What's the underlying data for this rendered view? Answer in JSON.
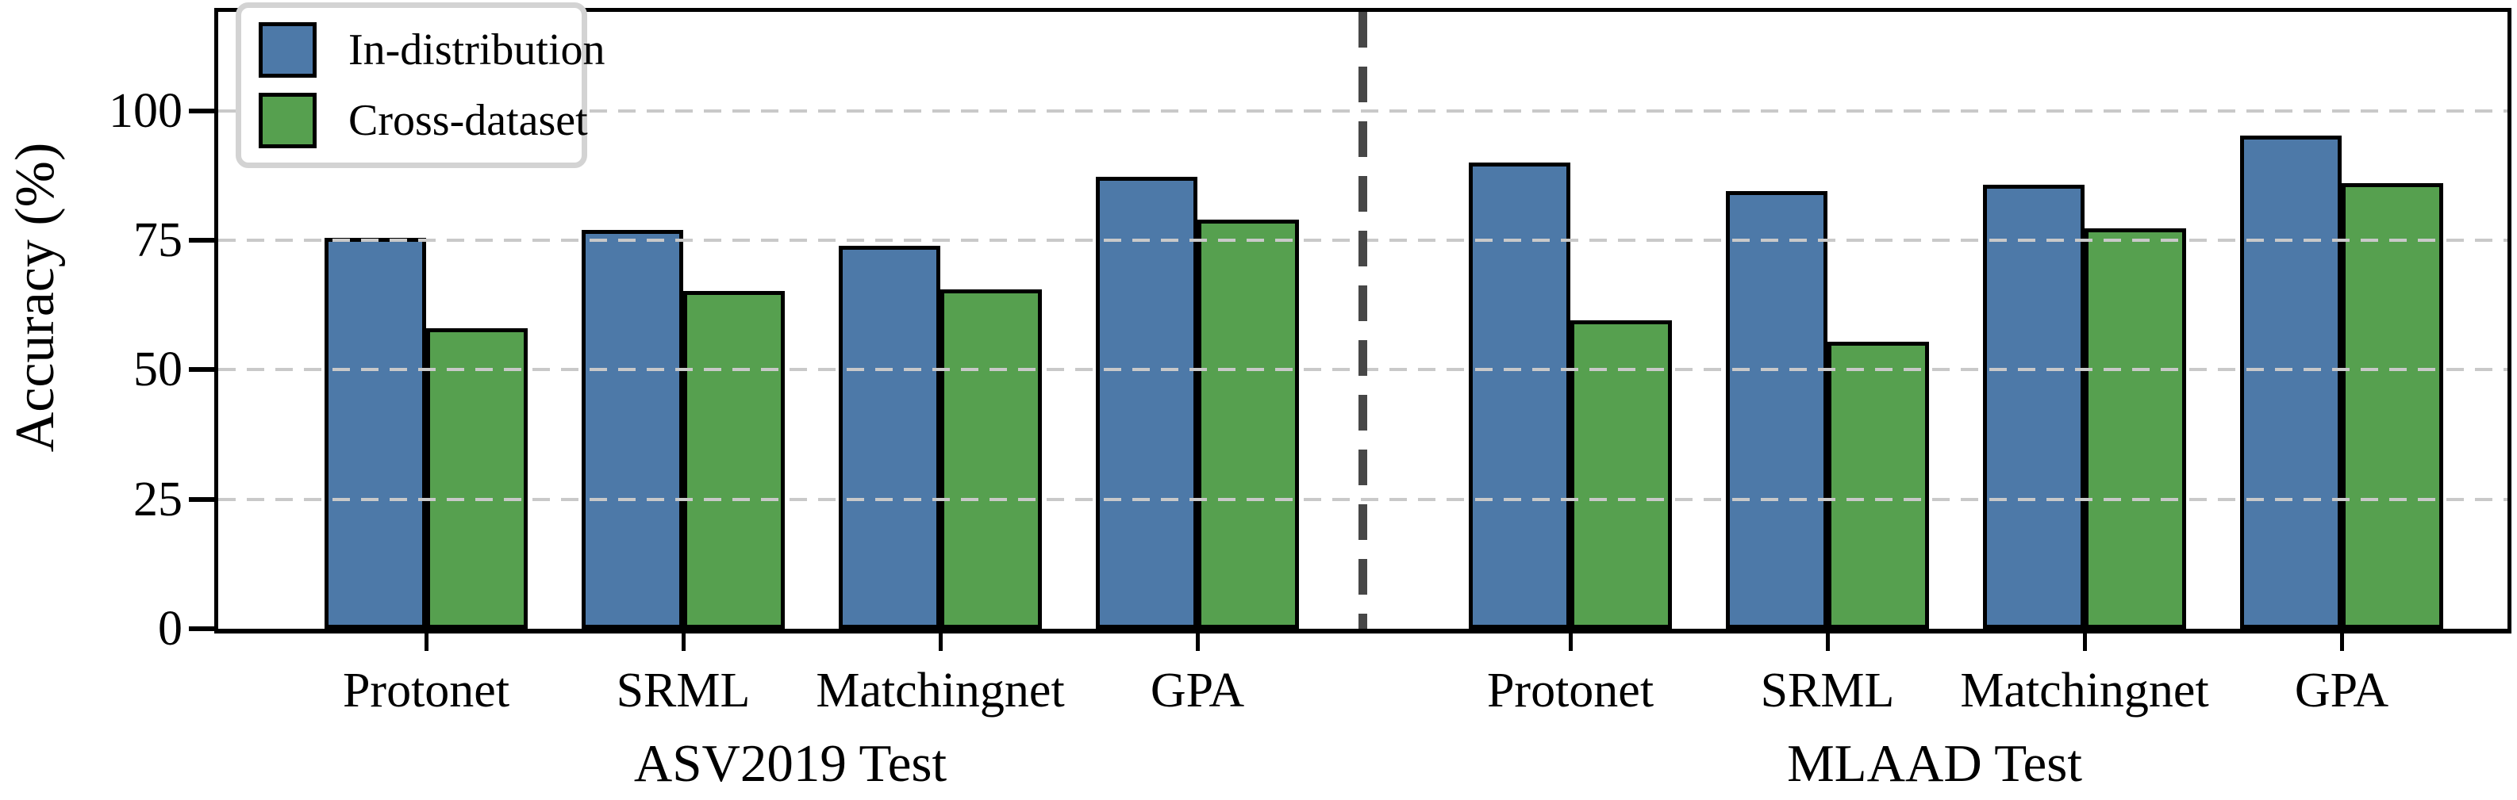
{
  "figure_background": "#ffffff",
  "chart_data": {
    "type": "bar",
    "ylabel": "Accuracy (%)",
    "yticks": [
      0,
      25,
      50,
      75,
      100
    ],
    "ylim": [
      0,
      119
    ],
    "grid": {
      "horizontal_dashes_at": [
        25,
        50,
        75,
        100
      ],
      "color": "#c9c9c9",
      "drawn_above_bars": true
    },
    "legend": {
      "position": "upper left",
      "entries": [
        {
          "label": "In-distribution",
          "color": "#4d79a8"
        },
        {
          "label": "Cross-dataset",
          "color": "#56a04f"
        }
      ]
    },
    "separator": {
      "style": "vertical dashed line between panels",
      "color": "#474747"
    },
    "panels": [
      {
        "title": "ASV2019 Test",
        "categories": [
          "Protonet",
          "SRML",
          "Matchingnet",
          "GPA"
        ],
        "series": [
          {
            "name": "In-distribution",
            "values": [
              75.5,
              77.0,
              74.0,
              87.3
            ]
          },
          {
            "name": "Cross-dataset",
            "values": [
              58.0,
              65.3,
              65.6,
              79.0
            ]
          }
        ]
      },
      {
        "title": "MLAAD Test",
        "categories": [
          "Protonet",
          "SRML",
          "Matchingnet",
          "GPA"
        ],
        "series": [
          {
            "name": "In-distribution",
            "values": [
              90.0,
              84.5,
              85.8,
              95.2
            ]
          },
          {
            "name": "Cross-dataset",
            "values": [
              59.5,
              55.4,
              77.4,
              86.0
            ]
          }
        ]
      }
    ]
  },
  "colors": {
    "bar_edge": "#000000",
    "in_distribution": "#4d79a8",
    "cross_dataset": "#56a04f",
    "grid": "#c9c9c9",
    "separator": "#474747",
    "legend_border": "#d3d3d3"
  }
}
